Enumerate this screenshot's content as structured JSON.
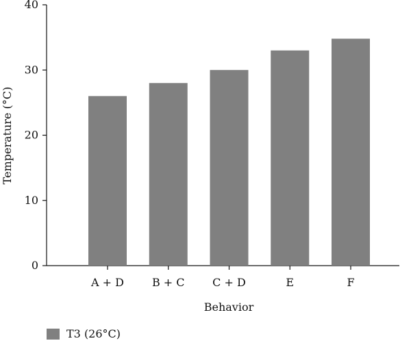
{
  "chart_data": {
    "type": "bar",
    "categories": [
      "A + D",
      "B + C",
      "C + D",
      "E",
      "F"
    ],
    "series": [
      {
        "name": "T3 (26°C)",
        "values": [
          26,
          28,
          30,
          33,
          34.8
        ]
      }
    ],
    "xlabel": "Behavior",
    "ylabel": "Temperature (°C)",
    "ylim": [
      0,
      40
    ],
    "yticks": [
      "0",
      "10",
      "20",
      "30",
      "40"
    ],
    "grid": false,
    "legend": "bottom-left",
    "bar_color": "#808080",
    "axis_color": "#111111"
  }
}
